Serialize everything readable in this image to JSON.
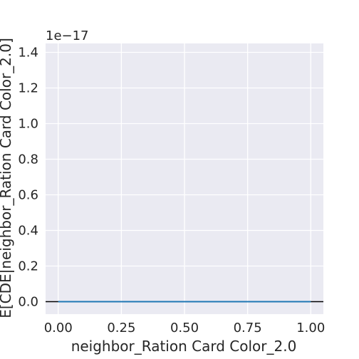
{
  "chart_data": {
    "type": "line",
    "title": "",
    "xlabel": "neighbor_Ration Card Color_2.0",
    "ylabel": "E[CDE|neighbor_Ration Card Color_2.0]",
    "xlim": [
      -0.05,
      1.05
    ],
    "ylim": [
      -0.07,
      1.45
    ],
    "y_offset_label": "1e−17",
    "x_ticks": [
      0.0,
      0.25,
      0.5,
      0.75,
      1.0
    ],
    "x_tick_labels": [
      "0.00",
      "0.25",
      "0.50",
      "0.75",
      "1.00"
    ],
    "y_ticks": [
      0.0,
      0.2,
      0.4,
      0.6,
      0.8,
      1.0,
      1.2,
      1.4
    ],
    "y_tick_labels": [
      "0.0",
      "0.2",
      "0.4",
      "0.6",
      "0.8",
      "1.0",
      "1.2",
      "1.4"
    ],
    "grid": true,
    "series": [
      {
        "x": [
          0.0,
          1.0
        ],
        "y": [
          0.0,
          0.0
        ],
        "color": "#1f77b4"
      }
    ],
    "reference_line": {
      "y": 0.0,
      "color": "#000000"
    },
    "colors": {
      "plot_background": "#eaeaf2",
      "grid": "#ffffff",
      "text": "#262626"
    }
  }
}
